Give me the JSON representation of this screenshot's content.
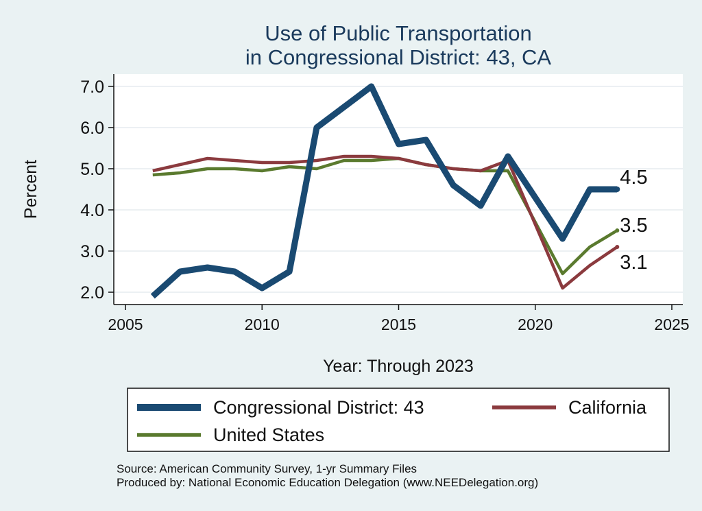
{
  "chart_data": {
    "type": "line",
    "title": [
      "Use of Public Transportation",
      "in Congressional District: 43, CA"
    ],
    "xlabel": "Year: Through 2023",
    "ylabel": "Percent",
    "xlim": [
      2005,
      2025
    ],
    "ylim": [
      1.8,
      7.2
    ],
    "x_ticks": [
      "2005",
      "2010",
      "2015",
      "2020",
      "2025"
    ],
    "y_ticks": [
      "2.0",
      "3.0",
      "4.0",
      "5.0",
      "6.0",
      "7.0"
    ],
    "grid": true,
    "legend_position": "bottom",
    "series": [
      {
        "name": "Congressional District: 43",
        "color": "#1a4a72",
        "x": [
          2006,
          2007,
          2008,
          2009,
          2010,
          2011,
          2012,
          2013,
          2014,
          2015,
          2016,
          2017,
          2018,
          2019,
          2021,
          2022,
          2023
        ],
        "y": [
          1.9,
          2.5,
          2.6,
          2.5,
          2.1,
          2.5,
          6.0,
          6.5,
          7.0,
          5.6,
          5.7,
          4.6,
          4.1,
          5.3,
          3.3,
          4.5,
          4.5
        ],
        "end_label": "4.5"
      },
      {
        "name": "California",
        "color": "#8b3a3e",
        "x": [
          2006,
          2007,
          2008,
          2009,
          2010,
          2011,
          2012,
          2013,
          2014,
          2015,
          2016,
          2017,
          2018,
          2019,
          2021,
          2022,
          2023
        ],
        "y": [
          4.95,
          5.1,
          5.25,
          5.2,
          5.15,
          5.15,
          5.2,
          5.3,
          5.3,
          5.25,
          5.1,
          5.0,
          4.95,
          5.2,
          2.1,
          2.65,
          3.1
        ],
        "end_label": "3.1"
      },
      {
        "name": "United States",
        "color": "#5a7a2e",
        "x": [
          2006,
          2007,
          2008,
          2009,
          2010,
          2011,
          2012,
          2013,
          2014,
          2015,
          2016,
          2017,
          2018,
          2019,
          2021,
          2022,
          2023
        ],
        "y": [
          4.85,
          4.9,
          5.0,
          5.0,
          4.95,
          5.05,
          5.0,
          5.2,
          5.2,
          5.25,
          5.1,
          5.0,
          4.95,
          4.95,
          2.45,
          3.1,
          3.5
        ],
        "end_label": "3.5"
      }
    ]
  },
  "footer": {
    "source": "Source: American Community Survey, 1-yr Summary Files",
    "produced": "Produced by: National Economic Education Delegation (www.NEEDelegation.org)"
  }
}
